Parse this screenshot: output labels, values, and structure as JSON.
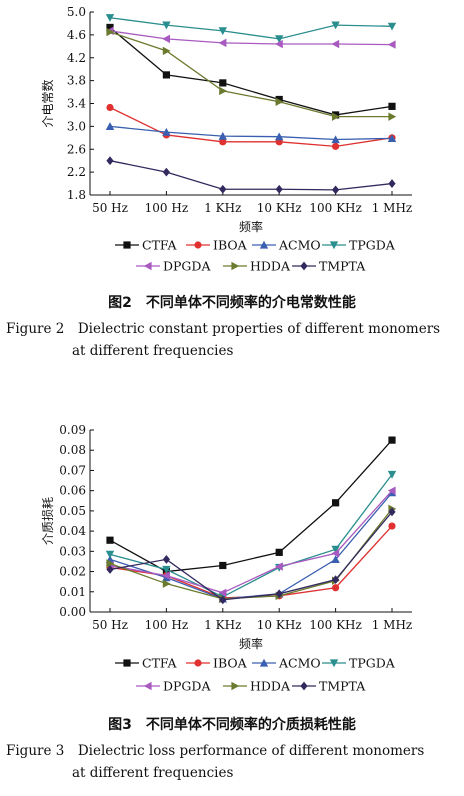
{
  "chart_data": [
    {
      "type": "line",
      "categories": [
        "50 Hz",
        "100 Hz",
        "1 KHz",
        "10 KHz",
        "100 KHz",
        "1 MHz"
      ],
      "xlabel": "频率",
      "ylabel": "介电常数",
      "ylim": [
        1.8,
        5.0
      ],
      "yticks": [
        "1.8",
        "2.2",
        "2.6",
        "3.0",
        "3.4",
        "3.8",
        "4.2",
        "4.6",
        "5.0"
      ],
      "grid": false,
      "legend_position": "bottom",
      "series": [
        {
          "name": "CTFA",
          "color": "#111111",
          "marker": "square",
          "values": [
            4.73,
            3.9,
            3.76,
            3.47,
            3.2,
            3.35
          ]
        },
        {
          "name": "IBOA",
          "color": "#e03030",
          "marker": "circle",
          "values": [
            3.33,
            2.85,
            2.73,
            2.73,
            2.65,
            2.8
          ]
        },
        {
          "name": "ACMO",
          "color": "#3a5fb0",
          "marker": "triangle-up",
          "values": [
            3.0,
            2.9,
            2.83,
            2.82,
            2.77,
            2.79
          ]
        },
        {
          "name": "TPGDA",
          "color": "#2a8e8e",
          "marker": "triangle-down",
          "values": [
            4.9,
            4.77,
            4.67,
            4.53,
            4.77,
            4.75
          ]
        },
        {
          "name": "DPGDA",
          "color": "#a85ac0",
          "marker": "triangle-left",
          "values": [
            4.67,
            4.53,
            4.46,
            4.44,
            4.44,
            4.43
          ]
        },
        {
          "name": "HDDA",
          "color": "#6a7a2e",
          "marker": "triangle-right",
          "values": [
            4.65,
            4.32,
            3.62,
            3.43,
            3.17,
            3.17
          ]
        },
        {
          "name": "TMPTA",
          "color": "#33295e",
          "marker": "diamond",
          "values": [
            2.4,
            2.2,
            1.9,
            1.9,
            1.89,
            2.0
          ]
        }
      ]
    },
    {
      "type": "line",
      "categories": [
        "50 Hz",
        "100 Hz",
        "1 KHz",
        "10 KHz",
        "100 KHz",
        "1 MHz"
      ],
      "xlabel": "频率",
      "ylabel": "介质损耗",
      "ylim": [
        0.0,
        0.09
      ],
      "yticks": [
        "0.00",
        "0.01",
        "0.02",
        "0.03",
        "0.04",
        "0.05",
        "0.06",
        "0.07",
        "0.08",
        "0.09"
      ],
      "grid": false,
      "legend_position": "bottom",
      "series": [
        {
          "name": "CTFA",
          "color": "#111111",
          "marker": "square",
          "values": [
            0.0355,
            0.02,
            0.023,
            0.0295,
            0.054,
            0.085
          ]
        },
        {
          "name": "IBOA",
          "color": "#e03030",
          "marker": "circle",
          "values": [
            0.022,
            0.018,
            0.007,
            0.008,
            0.012,
            0.0425
          ]
        },
        {
          "name": "ACMO",
          "color": "#3a5fb0",
          "marker": "triangle-up",
          "values": [
            0.026,
            0.017,
            0.0065,
            0.009,
            0.026,
            0.059
          ]
        },
        {
          "name": "TPGDA",
          "color": "#2a8e8e",
          "marker": "triangle-down",
          "values": [
            0.0285,
            0.021,
            0.0075,
            0.022,
            0.031,
            0.068
          ]
        },
        {
          "name": "DPGDA",
          "color": "#a85ac0",
          "marker": "triangle-left",
          "values": [
            0.023,
            0.018,
            0.0095,
            0.0225,
            0.029,
            0.06
          ]
        },
        {
          "name": "HDDA",
          "color": "#6a7a2e",
          "marker": "triangle-right",
          "values": [
            0.024,
            0.014,
            0.0065,
            0.008,
            0.0155,
            0.051
          ]
        },
        {
          "name": "TMPTA",
          "color": "#33295e",
          "marker": "diamond",
          "values": [
            0.021,
            0.026,
            0.006,
            0.009,
            0.016,
            0.0495
          ]
        }
      ]
    }
  ],
  "captions": {
    "fig2_cn": "图2　不同单体不同频率的介电常数性能",
    "fig2_en_1": "Figure 2　Dielectric constant properties of different monomers",
    "fig2_en_2": "at different frequencies",
    "fig3_cn": "图3　不同单体不同频率的介质损耗性能",
    "fig3_en_1": "Figure 3　Dielectric loss performance of different monomers",
    "fig3_en_2": "at different frequencies"
  }
}
